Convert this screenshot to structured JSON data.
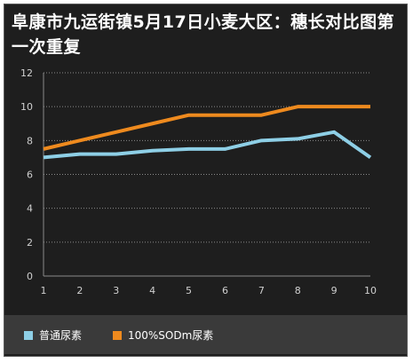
{
  "title": "阜康市九运街镇5月17日小麦大区：穗长对比图第一次重复",
  "colors": {
    "background": "#1e1e1e",
    "grid": "#8a8a8a",
    "axis_text": "#d0d0d0",
    "legend_bg": "#3a3a3a"
  },
  "chart_data": {
    "type": "line",
    "title": "阜康市九运街镇5月17日小麦大区：穗长对比图第一次重复",
    "xlabel": "",
    "ylabel": "",
    "categories": [
      "1",
      "2",
      "3",
      "4",
      "5",
      "6",
      "7",
      "8",
      "9",
      "10"
    ],
    "ylim": [
      0,
      12
    ],
    "yticks": [
      "0",
      "2",
      "4",
      "6",
      "8",
      "10",
      "12"
    ],
    "grid": "horizontal-dotted",
    "legend_position": "bottom",
    "series": [
      {
        "name": "普通尿素",
        "color": "#8ecfe6",
        "values": [
          7.0,
          7.2,
          7.2,
          7.4,
          7.5,
          7.5,
          8.0,
          8.1,
          8.5,
          7.0
        ]
      },
      {
        "name": "100%SODm尿素",
        "color": "#ee8a1e",
        "values": [
          7.5,
          8.0,
          8.5,
          9.0,
          9.5,
          9.5,
          9.5,
          10.0,
          10.0,
          10.0
        ]
      }
    ]
  }
}
